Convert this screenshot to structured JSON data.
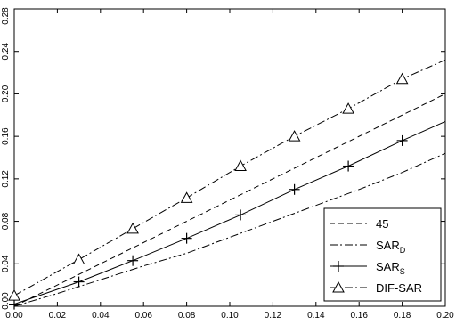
{
  "chart_data": {
    "type": "line",
    "title": "",
    "xlabel": "",
    "ylabel": "",
    "xlim": [
      0.0,
      0.2
    ],
    "ylim": [
      0.0,
      0.28
    ],
    "x_ticks": [
      "0.00",
      "0.02",
      "0.04",
      "0.06",
      "0.08",
      "0.10",
      "0.12",
      "0.14",
      "0.16",
      "0.18",
      "0.20"
    ],
    "y_ticks": [
      "0.00",
      "0.04",
      "0.08",
      "0.12",
      "0.16",
      "0.20",
      "0.24",
      "0.28"
    ],
    "grid": false,
    "legend_position": "bottom-right",
    "series": [
      {
        "name": "45",
        "style": "dashed",
        "marker": "none",
        "x": [
          0.0,
          0.2
        ],
        "y": [
          0.0,
          0.2
        ]
      },
      {
        "name": "SAR",
        "subscript": "D",
        "style": "dashdot",
        "marker": "none",
        "x": [
          0.0,
          0.02,
          0.04,
          0.06,
          0.08,
          0.1,
          0.12,
          0.14,
          0.16,
          0.18,
          0.2
        ],
        "y": [
          0.0,
          0.012,
          0.025,
          0.038,
          0.05,
          0.065,
          0.08,
          0.095,
          0.11,
          0.126,
          0.144
        ]
      },
      {
        "name": "SAR",
        "subscript": "S",
        "style": "solid",
        "marker": "plus",
        "x": [
          0.0,
          0.03,
          0.055,
          0.08,
          0.105,
          0.13,
          0.155,
          0.18,
          0.2
        ],
        "y": [
          0.002,
          0.023,
          0.043,
          0.064,
          0.086,
          0.11,
          0.132,
          0.156,
          0.174
        ]
      },
      {
        "name": "DIF-SAR",
        "style": "dashdot",
        "marker": "triangle",
        "x": [
          0.0,
          0.03,
          0.055,
          0.08,
          0.105,
          0.13,
          0.155,
          0.18,
          0.2
        ],
        "y": [
          0.01,
          0.044,
          0.073,
          0.102,
          0.132,
          0.16,
          0.186,
          0.214,
          0.232
        ]
      }
    ]
  }
}
